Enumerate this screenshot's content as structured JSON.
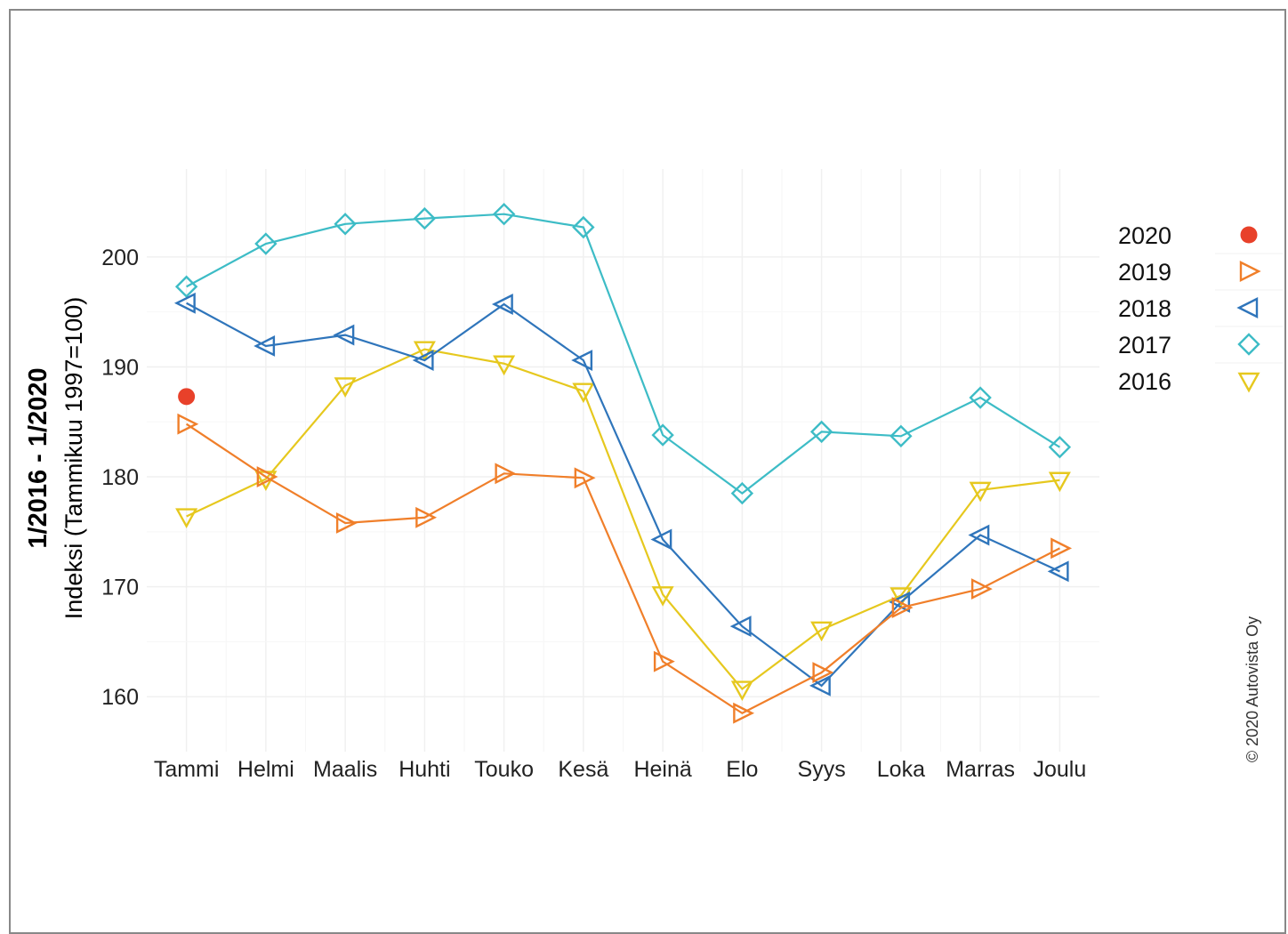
{
  "chart_data": {
    "type": "line",
    "title": "",
    "ylabel_line1": "1/2016 - 1/2020",
    "ylabel_line2": "Indeksi (Tammikuu 1997=100)",
    "xlabel": "",
    "copyright": "© 2020 Autovista Oy",
    "categories": [
      "Tammi",
      "Helmi",
      "Maalis",
      "Huhti",
      "Touko",
      "Kesä",
      "Heinä",
      "Elo",
      "Syys",
      "Loka",
      "Marras",
      "Joulu"
    ],
    "ylim": [
      155,
      208
    ],
    "yticks": [
      160,
      170,
      180,
      190,
      200
    ],
    "grid": true,
    "legend_position": "right",
    "series": [
      {
        "name": "2020",
        "color": "#e8412a",
        "marker": "circle",
        "values": [
          187.3,
          null,
          null,
          null,
          null,
          null,
          null,
          null,
          null,
          null,
          null,
          null
        ]
      },
      {
        "name": "2019",
        "color": "#f07f2a",
        "marker": "triangle-right",
        "values": [
          184.8,
          180.0,
          175.8,
          176.3,
          180.3,
          179.9,
          163.2,
          158.5,
          162.2,
          168.1,
          169.8,
          173.5
        ]
      },
      {
        "name": "2018",
        "color": "#2f75bb",
        "marker": "triangle-left",
        "values": [
          195.8,
          191.9,
          192.9,
          190.6,
          195.7,
          190.6,
          174.3,
          166.4,
          161.0,
          168.6,
          174.7,
          171.4
        ]
      },
      {
        "name": "2017",
        "color": "#3dbcc6",
        "marker": "diamond",
        "values": [
          197.3,
          201.2,
          203.0,
          203.5,
          203.9,
          202.7,
          183.8,
          178.5,
          184.1,
          183.7,
          187.2,
          182.7
        ]
      },
      {
        "name": "2016",
        "color": "#e6c81e",
        "marker": "triangle-down",
        "values": [
          176.4,
          179.8,
          188.3,
          191.6,
          190.3,
          187.8,
          169.3,
          160.7,
          166.1,
          169.2,
          178.8,
          179.7
        ]
      }
    ]
  }
}
